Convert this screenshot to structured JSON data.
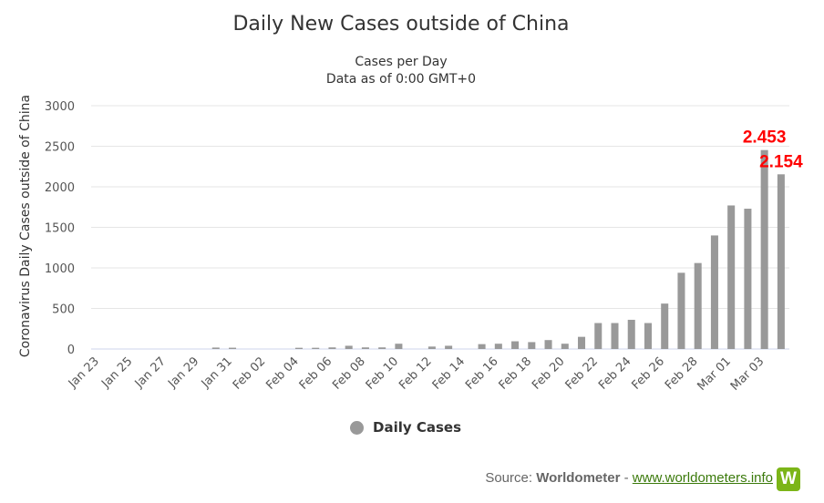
{
  "chart_data": {
    "type": "bar",
    "title": "Daily New Cases outside of China",
    "subtitle": [
      "Cases per Day",
      "Data as of 0:00 GMT+0"
    ],
    "ylabel": "Coronavirus Daily Cases outside of China",
    "xlabel": "",
    "ylim": [
      0,
      3000
    ],
    "yticks": [
      0,
      500,
      1000,
      1500,
      2000,
      2500,
      3000
    ],
    "categories": [
      "Jan 23",
      "Jan 24",
      "Jan 25",
      "Jan 26",
      "Jan 27",
      "Jan 28",
      "Jan 29",
      "Jan 30",
      "Jan 31",
      "Feb 01",
      "Feb 02",
      "Feb 03",
      "Feb 04",
      "Feb 05",
      "Feb 06",
      "Feb 07",
      "Feb 08",
      "Feb 09",
      "Feb 10",
      "Feb 11",
      "Feb 12",
      "Feb 13",
      "Feb 14",
      "Feb 15",
      "Feb 16",
      "Feb 17",
      "Feb 18",
      "Feb 19",
      "Feb 20",
      "Feb 21",
      "Feb 22",
      "Feb 23",
      "Feb 24",
      "Feb 25",
      "Feb 26",
      "Feb 27",
      "Feb 28",
      "Feb 29",
      "Mar 01",
      "Mar 02",
      "Mar 03",
      "Mar 04"
    ],
    "xtick_labels": [
      "Jan 23",
      "Jan 25",
      "Jan 27",
      "Jan 29",
      "Jan 31",
      "Feb 02",
      "Feb 04",
      "Feb 06",
      "Feb 08",
      "Feb 10",
      "Feb 12",
      "Feb 14",
      "Feb 16",
      "Feb 18",
      "Feb 20",
      "Feb 22",
      "Feb 24",
      "Feb 26",
      "Feb 28",
      "Mar 01",
      "Mar 03"
    ],
    "series": [
      {
        "name": "Daily Cases",
        "color": "#999999",
        "values": [
          0,
          0,
          0,
          0,
          0,
          0,
          0,
          18,
          16,
          0,
          0,
          0,
          15,
          15,
          20,
          40,
          20,
          20,
          65,
          0,
          30,
          40,
          0,
          60,
          65,
          95,
          85,
          110,
          65,
          150,
          320,
          320,
          360,
          320,
          560,
          940,
          1060,
          1400,
          1770,
          1730,
          2453,
          2154
        ]
      }
    ],
    "annotations": [
      {
        "text": "2.453",
        "category": "Mar 03",
        "color": "#ff0000"
      },
      {
        "text": "2.154",
        "category": "Mar 04",
        "color": "#ff0000"
      }
    ],
    "legend": {
      "position": "bottom-center",
      "label": "Daily Cases"
    },
    "grid": true
  },
  "source": {
    "prefix": "Source: ",
    "brand": "Worldometer",
    "separator": " - ",
    "url_text": "www.worldometers.info",
    "logo_letter": "W"
  }
}
